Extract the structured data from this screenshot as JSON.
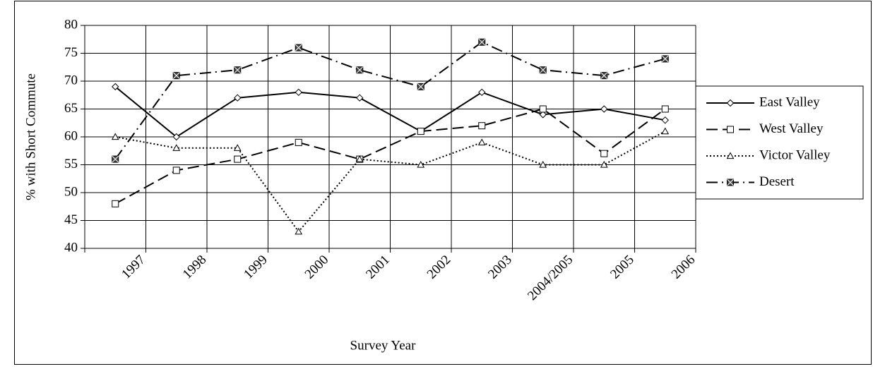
{
  "chart_data": {
    "type": "line",
    "y_label": "% with Short Commute",
    "x_label": "Survey Year",
    "categories": [
      "1997",
      "1998",
      "1999",
      "2000",
      "2001",
      "2002",
      "2003",
      "2004/2005",
      "2005",
      "2006"
    ],
    "series": [
      {
        "name": "East Valley",
        "color": "#000000",
        "line_style": "solid",
        "marker": "diamond",
        "values": [
          69,
          60,
          67,
          68,
          67,
          61,
          68,
          64,
          65,
          63
        ]
      },
      {
        "name": "West Valley",
        "color": "#000000",
        "line_style": "dash",
        "marker": "square",
        "values": [
          48,
          54,
          56,
          59,
          56,
          61,
          62,
          65,
          57,
          65
        ]
      },
      {
        "name": "Victor Valley",
        "color": "#000000",
        "line_style": "dot",
        "marker": "triangle",
        "values": [
          60,
          58,
          58,
          43,
          56,
          55,
          59,
          55,
          55,
          61
        ]
      },
      {
        "name": "Desert",
        "color": "#000000",
        "line_style": "dashdot",
        "marker": "xsquare",
        "values": [
          56,
          71,
          72,
          76,
          72,
          69,
          77,
          72,
          71,
          74
        ]
      }
    ],
    "ylim": [
      40,
      80
    ],
    "yticks": [
      40,
      45,
      50,
      55,
      60,
      65,
      70,
      75,
      80
    ],
    "grid": true,
    "legend": "right"
  }
}
